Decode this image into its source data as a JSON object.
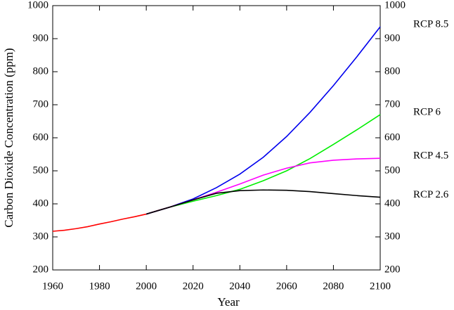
{
  "chart_data": {
    "type": "line",
    "x_label": "Year",
    "y_label": "Carbon Dioxide Concentration (ppm)",
    "xlim": [
      1960,
      2100
    ],
    "xticks": [
      1960,
      1980,
      2000,
      2020,
      2040,
      2060,
      2080,
      2100
    ],
    "ylim": [
      200,
      1000
    ],
    "yticks": [
      200,
      300,
      400,
      500,
      600,
      700,
      800,
      900,
      1000
    ],
    "y2lim": [
      200,
      1000
    ],
    "y2ticks": [
      200,
      300,
      400,
      500,
      600,
      700,
      800,
      900,
      1000
    ],
    "series": [
      {
        "color": "#ff0000",
        "x": [
          1960,
          1965,
          1970,
          1975,
          1980,
          1985,
          1990,
          1995,
          2000,
          2005,
          2010,
          2015
        ],
        "values": [
          317,
          320,
          325,
          331,
          339,
          346,
          354,
          361,
          369,
          380,
          390,
          400
        ]
      },
      {
        "name": "RCP 8.5",
        "color": "#0000ee",
        "x": [
          2000,
          2010,
          2020,
          2030,
          2040,
          2050,
          2060,
          2070,
          2080,
          2090,
          2100
        ],
        "values": [
          369,
          390,
          415,
          449,
          490,
          541,
          604,
          677,
          758,
          845,
          936
        ]
      },
      {
        "name": "RCP 6",
        "color": "#00ee00",
        "x": [
          2000,
          2010,
          2020,
          2030,
          2040,
          2050,
          2060,
          2070,
          2080,
          2090,
          2100
        ],
        "values": [
          369,
          390,
          408,
          425,
          444,
          470,
          500,
          537,
          580,
          624,
          670
        ]
      },
      {
        "name": "RCP 4.5",
        "color": "#ff00ff",
        "x": [
          2000,
          2010,
          2020,
          2030,
          2040,
          2050,
          2060,
          2070,
          2080,
          2090,
          2100
        ],
        "values": [
          369,
          390,
          412,
          435,
          460,
          487,
          508,
          524,
          532,
          536,
          538
        ]
      },
      {
        "name": "RCP 2.6",
        "color": "#000000",
        "x": [
          2000,
          2010,
          2020,
          2030,
          2040,
          2050,
          2060,
          2070,
          2080,
          2090,
          2100
        ],
        "values": [
          369,
          390,
          412,
          432,
          440,
          442,
          441,
          437,
          431,
          425,
          420
        ]
      }
    ]
  }
}
